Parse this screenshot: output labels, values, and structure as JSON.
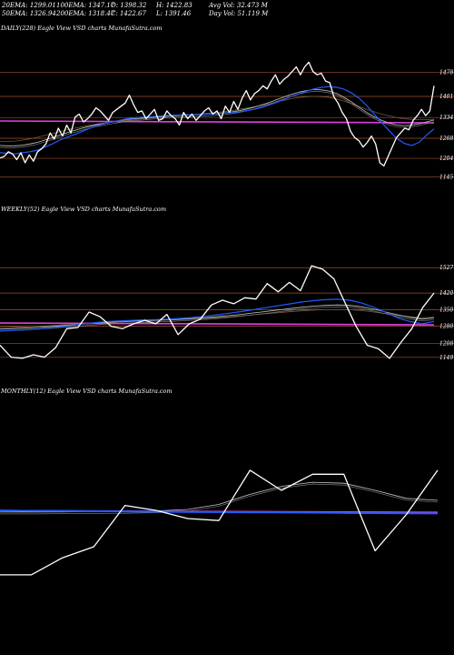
{
  "header": {
    "row1": [
      {
        "label": "20EMA:",
        "value": "1299.01"
      },
      {
        "label": "100EMA:",
        "value": "1347.17"
      },
      {
        "label": "O:",
        "value": "1398.32"
      },
      {
        "label": "H:",
        "value": "1422.83"
      },
      {
        "label": "Avg Vol:",
        "value": "32.473 M"
      }
    ],
    "row2": [
      {
        "label": "50EMA:",
        "value": "1326.94"
      },
      {
        "label": "200EMA:",
        "value": "1318.47"
      },
      {
        "label": "C:",
        "value": "1422.67"
      },
      {
        "label": "L:",
        "value": "1391.46"
      },
      {
        "label": "Day Vol:",
        "value": "51.119 M"
      }
    ]
  },
  "colors": {
    "background": "#000000",
    "price": "#ffffff",
    "ema_short": "#1f5cff",
    "ema_mid": "#c7c7c7",
    "ema_long": "#6e5a3a",
    "support_line": "#e040e0",
    "grid": "#a0522d"
  },
  "chart_data": [
    {
      "type": "line",
      "panel": "daily",
      "label": "DAILY(228) Eagle  View VSD charts MunafaSutra.com",
      "ylim": [
        1100,
        1540
      ],
      "ticks": [
        1478,
        1401,
        1334,
        1268,
        1204,
        1145
      ],
      "support_level": 1320,
      "series": [
        {
          "role": "price",
          "values": [
            1205,
            1210,
            1225,
            1218,
            1200,
            1222,
            1190,
            1215,
            1195,
            1225,
            1235,
            1250,
            1285,
            1265,
            1300,
            1275,
            1310,
            1285,
            1335,
            1345,
            1320,
            1330,
            1345,
            1365,
            1355,
            1340,
            1325,
            1350,
            1360,
            1370,
            1380,
            1405,
            1375,
            1350,
            1355,
            1330,
            1345,
            1360,
            1325,
            1330,
            1355,
            1340,
            1330,
            1310,
            1350,
            1330,
            1345,
            1325,
            1340,
            1355,
            1365,
            1345,
            1355,
            1330,
            1370,
            1350,
            1385,
            1360,
            1395,
            1420,
            1390,
            1410,
            1420,
            1435,
            1425,
            1450,
            1470,
            1440,
            1455,
            1465,
            1480,
            1495,
            1470,
            1495,
            1510,
            1480,
            1470,
            1475,
            1450,
            1445,
            1400,
            1380,
            1350,
            1330,
            1290,
            1270,
            1260,
            1240,
            1255,
            1275,
            1250,
            1190,
            1180,
            1210,
            1240,
            1270,
            1285,
            1300,
            1295,
            1325,
            1340,
            1360,
            1340,
            1355,
            1435
          ]
        },
        {
          "role": "ema_short",
          "values": [
            1222,
            1220,
            1218,
            1222,
            1225,
            1230,
            1240,
            1250,
            1262,
            1272,
            1280,
            1290,
            1300,
            1308,
            1315,
            1320,
            1325,
            1330,
            1333,
            1335,
            1336,
            1338,
            1340,
            1341,
            1342,
            1343,
            1343,
            1344,
            1345,
            1346,
            1348,
            1350,
            1352,
            1356,
            1360,
            1366,
            1374,
            1382,
            1392,
            1402,
            1410,
            1418,
            1425,
            1430,
            1432,
            1430,
            1424,
            1412,
            1395,
            1372,
            1345,
            1318,
            1292,
            1268,
            1252,
            1245,
            1255,
            1278,
            1298
          ]
        },
        {
          "role": "ema_mid",
          "values": [
            1245,
            1244,
            1244,
            1246,
            1250,
            1255,
            1262,
            1270,
            1278,
            1286,
            1293,
            1300,
            1306,
            1312,
            1316,
            1320,
            1324,
            1328,
            1330,
            1332,
            1334,
            1336,
            1338,
            1340,
            1341,
            1342,
            1343,
            1344,
            1345,
            1347,
            1349,
            1352,
            1356,
            1361,
            1367,
            1374,
            1382,
            1391,
            1400,
            1408,
            1415,
            1420,
            1423,
            1422,
            1418,
            1410,
            1398,
            1383,
            1366,
            1350,
            1336,
            1325,
            1316,
            1310,
            1308,
            1310,
            1314,
            1320,
            1326
          ]
        },
        {
          "role": "ema_long",
          "values": [
            1258,
            1258,
            1259,
            1262,
            1266,
            1271,
            1277,
            1283,
            1289,
            1295,
            1300,
            1305,
            1309,
            1313,
            1316,
            1319,
            1322,
            1325,
            1327,
            1330,
            1332,
            1334,
            1336,
            1338,
            1340,
            1342,
            1344,
            1346,
            1348,
            1350,
            1353,
            1356,
            1360,
            1364,
            1368,
            1373,
            1378,
            1384,
            1389,
            1394,
            1398,
            1400,
            1401,
            1400,
            1398,
            1393,
            1386,
            1378,
            1369,
            1360,
            1352,
            1345,
            1339,
            1334,
            1330,
            1328,
            1327,
            1327,
            1328
          ]
        }
      ]
    },
    {
      "type": "line",
      "panel": "weekly",
      "label": "WEEKLY(52) Eagle  View VSD charts MunafaSutra.com",
      "ylim": [
        1110,
        1570
      ],
      "ticks": [
        1527,
        1420,
        1350,
        1280,
        1208,
        1149
      ],
      "support_level": 1290,
      "series": [
        {
          "role": "price",
          "values": [
            1200,
            1150,
            1145,
            1160,
            1150,
            1190,
            1270,
            1275,
            1340,
            1320,
            1280,
            1270,
            1290,
            1305,
            1290,
            1330,
            1245,
            1290,
            1310,
            1370,
            1390,
            1375,
            1400,
            1395,
            1460,
            1425,
            1465,
            1430,
            1535,
            1520,
            1480,
            1380,
            1280,
            1200,
            1185,
            1145,
            1210,
            1270,
            1360,
            1420
          ]
        },
        {
          "role": "ema_short",
          "values": [
            1260,
            1262,
            1265,
            1268,
            1272,
            1278,
            1284,
            1290,
            1296,
            1300,
            1303,
            1305,
            1307,
            1308,
            1310,
            1313,
            1317,
            1322,
            1328,
            1335,
            1342,
            1350,
            1358,
            1366,
            1374,
            1382,
            1388,
            1392,
            1394,
            1390,
            1378,
            1360,
            1338,
            1315,
            1300,
            1290,
            1300
          ]
        },
        {
          "role": "ema_mid",
          "values": [
            1268,
            1270,
            1272,
            1275,
            1278,
            1282,
            1286,
            1290,
            1294,
            1297,
            1300,
            1302,
            1304,
            1306,
            1308,
            1310,
            1313,
            1316,
            1320,
            1325,
            1330,
            1336,
            1342,
            1348,
            1354,
            1360,
            1365,
            1368,
            1370,
            1368,
            1362,
            1352,
            1340,
            1328,
            1318,
            1310,
            1315
          ]
        },
        {
          "role": "ema_long",
          "values": [
            1275,
            1276,
            1278,
            1280,
            1282,
            1285,
            1288,
            1291,
            1294,
            1296,
            1298,
            1300,
            1302,
            1304,
            1306,
            1308,
            1310,
            1313,
            1316,
            1320,
            1324,
            1328,
            1333,
            1337,
            1341,
            1345,
            1348,
            1350,
            1351,
            1350,
            1346,
            1340,
            1333,
            1326,
            1320,
            1316,
            1318
          ]
        }
      ]
    },
    {
      "type": "line",
      "panel": "monthly",
      "label": "MONTHLY(12) Eagle  View VSD charts MunafaSutra.com",
      "ylim": [
        950,
        1560
      ],
      "ticks": [],
      "support_level": 1315,
      "series": [
        {
          "role": "price",
          "values": [
            1000,
            1000,
            1085,
            1140,
            1345,
            1320,
            1280,
            1270,
            1520,
            1420,
            1500,
            1500,
            1120,
            1300,
            1520
          ]
        },
        {
          "role": "ema_short",
          "values": [
            1320,
            1318,
            1317,
            1316,
            1315,
            1314,
            1313,
            1312,
            1311,
            1310,
            1309,
            1308,
            1307,
            1306,
            1305
          ]
        },
        {
          "role": "ema_mid",
          "values": [
            1312,
            1312,
            1313,
            1314,
            1315,
            1318,
            1325,
            1350,
            1400,
            1440,
            1460,
            1455,
            1420,
            1380,
            1370
          ]
        }
      ]
    }
  ]
}
